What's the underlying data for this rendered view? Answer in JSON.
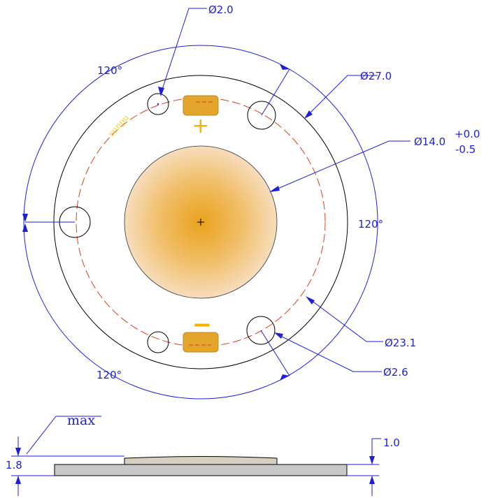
{
  "dimensions": {
    "hole_dia": "Ø2.0",
    "outer_dia": "Ø27.0",
    "led_dia": "Ø14.0",
    "led_tol_plus": "+0.0",
    "led_tol_minus": "-0.5",
    "pcd_dia": "Ø23.1",
    "mount_hole_dia": "Ø2.6",
    "angle_left": "120°",
    "angle_right": "120°",
    "angle_bottom": "120°",
    "total_height": "1.8",
    "board_thickness": "1.0",
    "max_label": "max"
  },
  "markings": {
    "brand": "sunpu",
    "plus": "+",
    "minus": "−"
  },
  "colors": {
    "dimension": "#1f1fd6",
    "pcd_line": "#d8401a",
    "pad": "#e3a52b",
    "led_center": "#e9a21c",
    "led_edge": "#f7ddbd",
    "polarity": "#f2b400",
    "brand_text": "#f2d22e"
  }
}
